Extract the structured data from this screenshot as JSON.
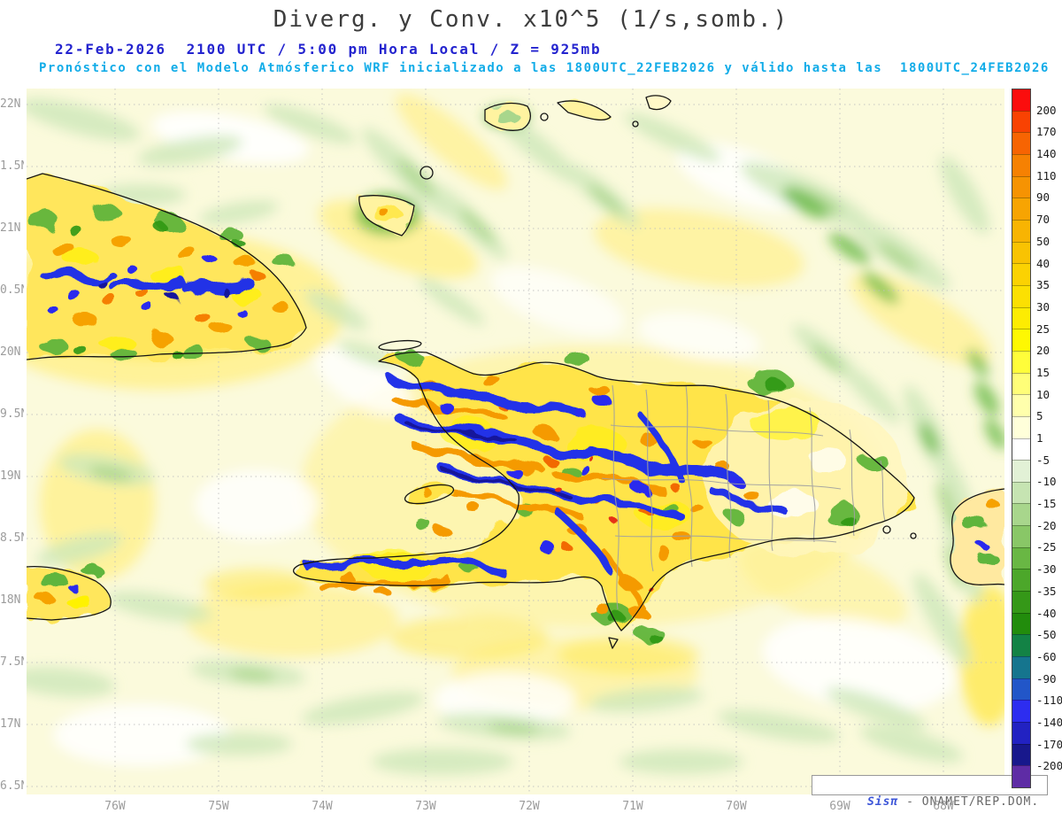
{
  "header": {
    "title": "Diverg. y Conv. x10^5 (1/s,somb.)",
    "subtitle_datetime": "22-Feb-2026  2100 UTC / 5:00 pm Hora Local / Z = 925mb",
    "subtitle_model": "Pronóstico con el Modelo Atmósferico WRF inicializado a las 1800UTC_22FEB2026 y válido hasta las  1800UTC_24FEB2026"
  },
  "axes": {
    "lat_labels": [
      "22N",
      "1.5N",
      "21N",
      "0.5N",
      "20N",
      "9.5N",
      "19N",
      "8.5N",
      "18N",
      "7.5N",
      "17N",
      "6.5N"
    ],
    "lon_labels": [
      "76W",
      "75W",
      "74W",
      "73W",
      "72W",
      "71W",
      "70W",
      "69W",
      "68W"
    ]
  },
  "colorbar": {
    "values": [
      "200",
      "170",
      "140",
      "110",
      "90",
      "70",
      "50",
      "40",
      "35",
      "30",
      "25",
      "20",
      "15",
      "10",
      "5",
      "1",
      "-5",
      "-10",
      "-15",
      "-20",
      "-25",
      "-30",
      "-35",
      "-40",
      "-50",
      "-60",
      "-90",
      "-110",
      "-140",
      "-170",
      "-200"
    ],
    "colors": [
      "#FB0D0D",
      "#F94202",
      "#F76402",
      "#F68102",
      "#F69302",
      "#F7A402",
      "#F8B402",
      "#F9C302",
      "#FBD202",
      "#FCE002",
      "#FDEC02",
      "#FEF802",
      "#FFFD3A",
      "#FFFE78",
      "#FFFFAC",
      "#FFFFDA",
      "#FFFFFF",
      "#E2F1D6",
      "#C6E4B2",
      "#A8D68C",
      "#89C767",
      "#69B744",
      "#4CA72A",
      "#359818",
      "#228C0C",
      "#138245",
      "#15758E",
      "#2256C8",
      "#2D2DF0",
      "#2222C2",
      "#18188C",
      "#5E2CA5"
    ]
  },
  "watermark": {
    "brand": "Sisπ",
    "suffix": " - ONAMET/REP.DOM."
  },
  "colors": {
    "title": "#3D3D3D",
    "subtitle_datetime": "#2424CF",
    "subtitle_model": "#12ACE8",
    "axis_label": "#9C9C9C",
    "grid": "#BFBFBF",
    "watermark_brand": "#3C55D8",
    "watermark_text": "#666666"
  }
}
